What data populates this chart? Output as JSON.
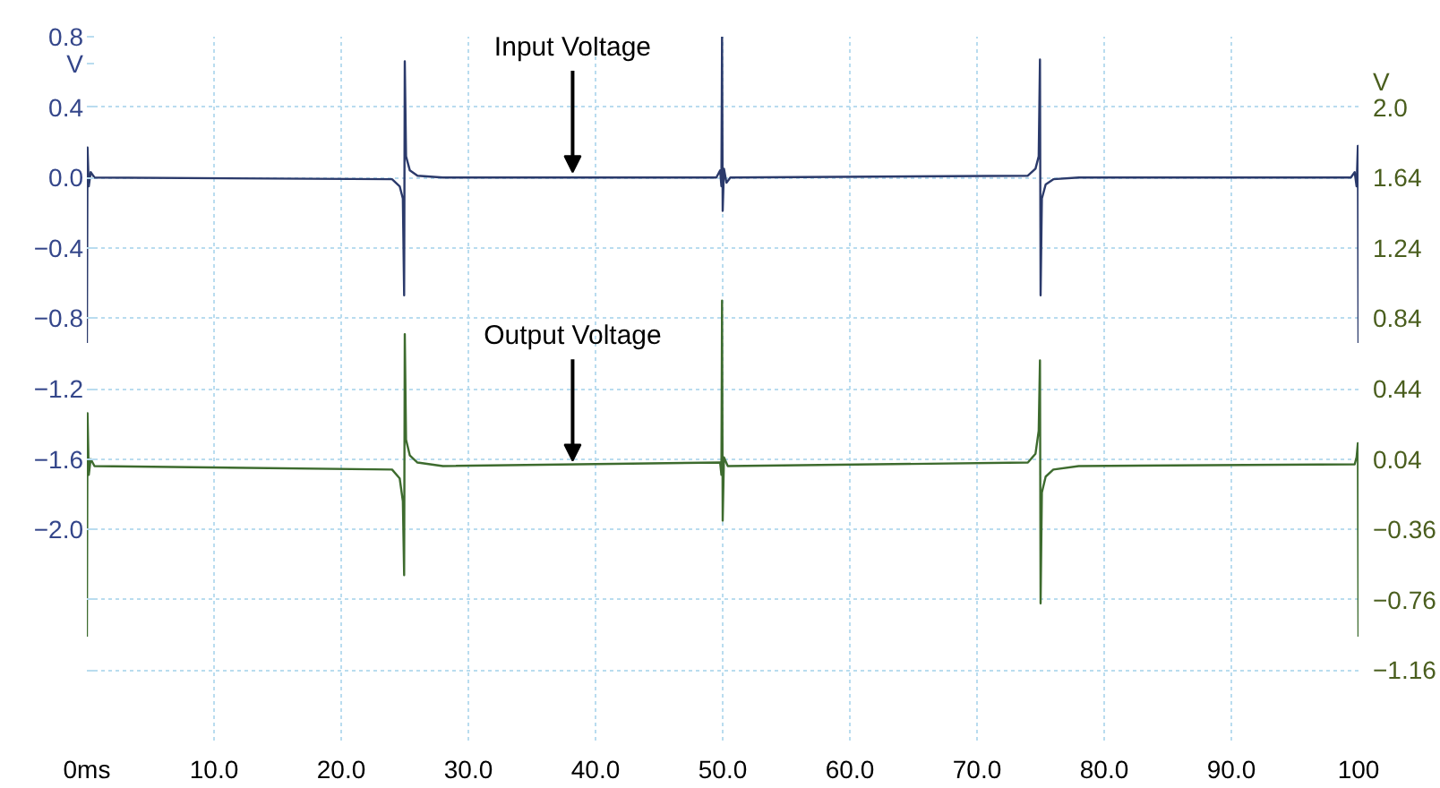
{
  "chart_data": {
    "type": "line",
    "ylabel": "V",
    "y2label": "V",
    "xlim": [
      0,
      100
    ],
    "xticks": [
      {
        "value": 0,
        "label": "0ms"
      },
      {
        "value": 10,
        "label": "10.0"
      },
      {
        "value": 20,
        "label": "20.0"
      },
      {
        "value": 30,
        "label": "30.0"
      },
      {
        "value": 40,
        "label": "40.0"
      },
      {
        "value": 50,
        "label": "50.0"
      },
      {
        "value": 60,
        "label": "60.0"
      },
      {
        "value": 70,
        "label": "70.0"
      },
      {
        "value": 80,
        "label": "80.0"
      },
      {
        "value": 90,
        "label": "90.0"
      },
      {
        "value": 100,
        "label": "100"
      }
    ],
    "ylim": [
      -3.2,
      0.8
    ],
    "yticks": [
      {
        "value": 0.8,
        "label": "0.8"
      },
      0.4,
      {
        "value": 0.0,
        "label": "0.0"
      },
      {
        "value": -0.4,
        "label": "−0.4"
      },
      {
        "value": -0.8,
        "label": "−0.8"
      },
      {
        "value": -1.2,
        "label": "−1.2"
      },
      {
        "value": -1.6,
        "label": "−1.6"
      },
      {
        "value": -2.0,
        "label": "−2.0"
      },
      {
        "value": -2.4,
        "label": null
      },
      {
        "value": -2.8,
        "label": null
      }
    ],
    "y2lim": [
      -1.56,
      2.44
    ],
    "y2ticks": [
      {
        "value": 2.04,
        "label": "2.0"
      },
      1.64,
      1.24,
      0.84,
      0.44,
      0.04,
      {
        "value": -0.36,
        "label": "−0.36"
      },
      {
        "value": -0.76,
        "label": "−0.76"
      },
      {
        "value": -1.16,
        "label": "−1.16"
      }
    ],
    "grid": true,
    "line_style": "solid",
    "series": [
      {
        "color": "#2b3a6b",
        "axis": "y",
        "x": [
          0,
          0.05,
          0.15,
          0.3,
          0.6,
          24.0,
          24.6,
          24.85,
          24.95,
          25.0,
          25.1,
          25.4,
          26.0,
          28.0,
          49.5,
          49.8,
          49.9,
          49.95,
          50.0,
          50.1,
          50.3,
          50.6,
          74.0,
          74.6,
          74.85,
          74.95,
          75.0,
          75.1,
          75.4,
          76.0,
          78.0,
          99.4,
          99.7,
          99.85,
          99.95,
          100
        ],
        "values": [
          -0.94,
          0.17,
          -0.05,
          0.03,
          0.0,
          -0.01,
          -0.05,
          -0.12,
          -0.67,
          0.66,
          0.12,
          0.04,
          0.01,
          0.0,
          0.0,
          0.04,
          -0.05,
          0.8,
          -0.19,
          0.05,
          -0.03,
          0.0,
          0.01,
          0.05,
          0.12,
          0.67,
          -0.67,
          -0.12,
          -0.04,
          -0.01,
          0.0,
          0.0,
          0.03,
          -0.05,
          0.18,
          -0.94
        ]
      },
      {
        "color": "#3d6b2e",
        "axis": "y2",
        "x": [
          0,
          0.05,
          0.15,
          0.3,
          0.6,
          24.0,
          24.6,
          24.85,
          24.95,
          25.0,
          25.1,
          25.4,
          26.0,
          28.0,
          49.8,
          49.9,
          49.95,
          50.0,
          50.1,
          50.4,
          74.0,
          74.6,
          74.85,
          74.95,
          75.0,
          75.1,
          75.4,
          76.0,
          78.0,
          99.7,
          99.85,
          99.95,
          100
        ],
        "values": [
          -0.97,
          0.3,
          -0.05,
          0.04,
          0.0,
          -0.02,
          -0.07,
          -0.2,
          -0.62,
          0.75,
          0.15,
          0.06,
          0.02,
          0.0,
          0.02,
          -0.05,
          0.94,
          -0.31,
          0.05,
          0.0,
          0.02,
          0.07,
          0.2,
          0.6,
          -0.78,
          -0.15,
          -0.06,
          -0.02,
          0.0,
          0.01,
          0.05,
          0.13,
          -0.97
        ]
      }
    ],
    "annotations": [
      {
        "text": "Input Voltage",
        "x": 38.2,
        "y": 0.0
      },
      {
        "text": "Output Voltage",
        "x": 38.2,
        "y": -1.64
      }
    ]
  }
}
